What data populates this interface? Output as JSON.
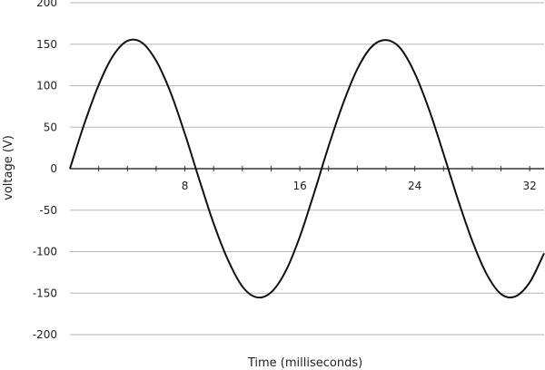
{
  "chart_data": {
    "type": "line",
    "xlabel": "Time (milliseconds)",
    "ylabel": "voltage (V)",
    "xlim": [
      0,
      33
    ],
    "ylim": [
      -200,
      200
    ],
    "x_ticks": [
      8,
      16,
      24,
      32
    ],
    "y_ticks": [
      200,
      150,
      100,
      50,
      0,
      -50,
      -100,
      -150,
      -200
    ],
    "grid": "horizontal",
    "series": [
      {
        "x": [
          0,
          1,
          2,
          3,
          4,
          5,
          6,
          7,
          8,
          9,
          10,
          11,
          12,
          13,
          14,
          15,
          16,
          17,
          18,
          19,
          20,
          21,
          22,
          23,
          24,
          25,
          26,
          27,
          28,
          29,
          30,
          31,
          32,
          33
        ],
        "values": [
          0,
          54,
          101,
          136,
          154,
          152,
          130,
          92,
          42,
          -13,
          -66,
          -110,
          -142,
          -155,
          -149,
          -124,
          -82,
          -29,
          27,
          78,
          120,
          147,
          155,
          145,
          115,
          71,
          18,
          -37,
          -87,
          -127,
          -151,
          -154,
          -137,
          -102
        ]
      }
    ],
    "colors": {
      "line": "#111111",
      "grid": "#b5b5b5",
      "axis": "#333333"
    }
  }
}
